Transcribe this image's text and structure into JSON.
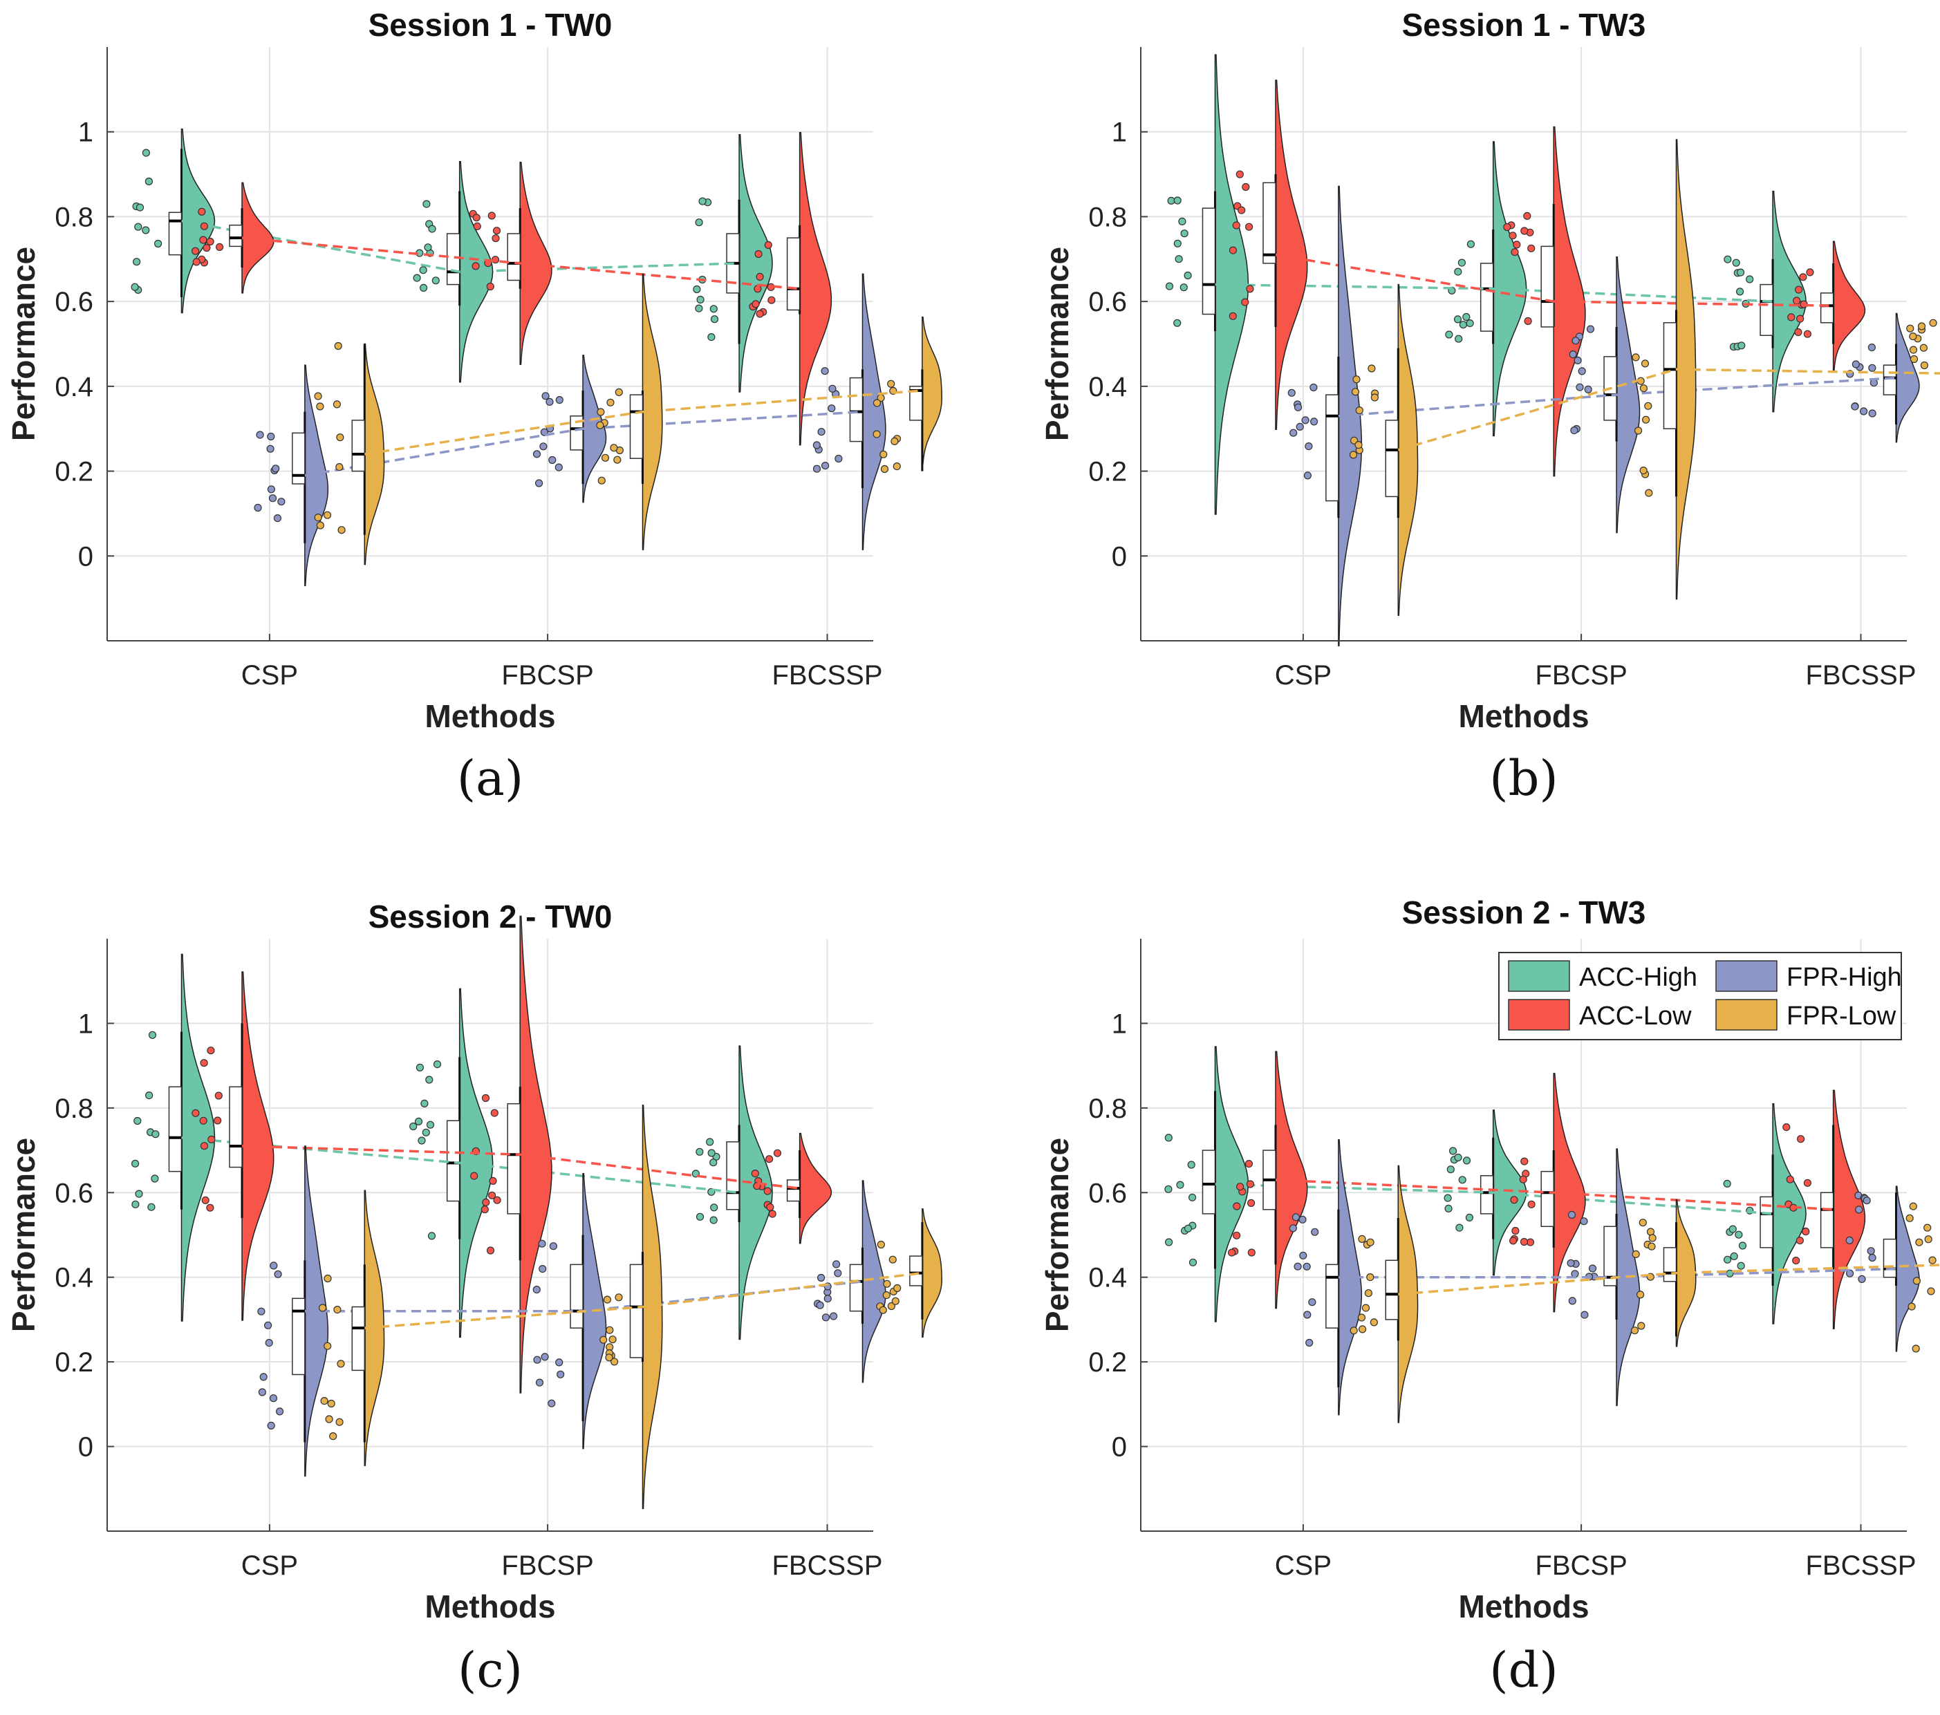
{
  "figure": {
    "panel_labels": [
      "(a)",
      "(b)",
      "(c)",
      "(d)"
    ]
  },
  "colors": {
    "ACC-High": "#6cc5a8",
    "ACC-Low": "#f7554a",
    "FPR-High": "#8c97c8",
    "FPR-Low": "#e6b04a"
  },
  "chart_data": [
    {
      "type": "violin",
      "title": "Session 1 - TW0",
      "xlabel": "Methods",
      "ylabel": "Performance",
      "ylim": [
        -0.2,
        1.2
      ],
      "yticks": [
        0,
        0.2,
        0.4,
        0.6,
        0.8,
        1
      ],
      "ytick_labels": [
        "0",
        "0.2",
        "0.4",
        "0.6",
        "0.8",
        "1"
      ],
      "grid": true,
      "categories": [
        "CSP",
        "FBCSP",
        "FBCSSP"
      ],
      "series": [
        {
          "name": "ACC-High",
          "medians": [
            0.79,
            0.67,
            0.69
          ],
          "q1": [
            0.71,
            0.64,
            0.62
          ],
          "q3": [
            0.81,
            0.76,
            0.76
          ],
          "min": [
            0.61,
            0.59,
            0.5
          ],
          "max": [
            0.96,
            0.86,
            0.84
          ]
        },
        {
          "name": "ACC-Low",
          "medians": [
            0.75,
            0.69,
            0.63
          ],
          "q1": [
            0.73,
            0.65,
            0.58
          ],
          "q3": [
            0.78,
            0.76,
            0.75
          ],
          "min": [
            0.68,
            0.63,
            0.57
          ],
          "max": [
            0.82,
            0.82,
            0.78
          ]
        },
        {
          "name": "FPR-High",
          "medians": [
            0.19,
            0.3,
            0.34
          ],
          "q1": [
            0.17,
            0.25,
            0.27
          ],
          "q3": [
            0.29,
            0.33,
            0.42
          ],
          "min": [
            0.03,
            0.17,
            0.16
          ],
          "max": [
            0.34,
            0.39,
            0.44
          ]
        },
        {
          "name": "FPR-Low",
          "medians": [
            0.24,
            0.34,
            0.39
          ],
          "q1": [
            0.2,
            0.23,
            0.32
          ],
          "q3": [
            0.32,
            0.38,
            0.4
          ],
          "min": [
            0.05,
            0.17,
            0.2
          ],
          "max": [
            0.5,
            0.39,
            0.44
          ]
        }
      ]
    },
    {
      "type": "violin",
      "title": "Session 1 - TW3",
      "xlabel": "Methods",
      "ylabel": "Performance",
      "ylim": [
        -0.2,
        1.2
      ],
      "yticks": [
        0,
        0.2,
        0.4,
        0.6,
        0.8,
        1
      ],
      "ytick_labels": [
        "0",
        "0.2",
        "0.4",
        "0.6",
        "0.8",
        "1"
      ],
      "grid": true,
      "categories": [
        "CSP",
        "FBCSP",
        "FBCSSP"
      ],
      "series": [
        {
          "name": "ACC-High",
          "medians": [
            0.64,
            0.63,
            0.6
          ],
          "q1": [
            0.57,
            0.53,
            0.52
          ],
          "q3": [
            0.82,
            0.69,
            0.64
          ],
          "min": [
            0.53,
            0.5,
            0.49
          ],
          "max": [
            0.86,
            0.77,
            0.7
          ]
        },
        {
          "name": "ACC-Low",
          "medians": [
            0.71,
            0.6,
            0.59
          ],
          "q1": [
            0.69,
            0.54,
            0.55
          ],
          "q3": [
            0.88,
            0.73,
            0.62
          ],
          "min": [
            0.54,
            0.54,
            0.5
          ],
          "max": [
            0.9,
            0.83,
            0.69
          ]
        },
        {
          "name": "FPR-High",
          "medians": [
            0.33,
            0.38,
            0.42
          ],
          "q1": [
            0.13,
            0.32,
            0.38
          ],
          "q3": [
            0.38,
            0.47,
            0.45
          ],
          "min": [
            0.09,
            0.27,
            0.31
          ],
          "max": [
            0.47,
            0.54,
            0.5
          ]
        },
        {
          "name": "FPR-Low",
          "medians": [
            0.25,
            0.44,
            0.43
          ],
          "q1": [
            0.14,
            0.3,
            0.4
          ],
          "q3": [
            0.32,
            0.55,
            0.46
          ],
          "min": [
            0.09,
            0.14,
            0.4
          ],
          "max": [
            0.49,
            0.58,
            0.55
          ]
        }
      ]
    },
    {
      "type": "violin",
      "title": "Session 2 - TW0",
      "xlabel": "Methods",
      "ylabel": "Performance",
      "ylim": [
        -0.2,
        1.2
      ],
      "yticks": [
        0,
        0.2,
        0.4,
        0.6,
        0.8,
        1
      ],
      "ytick_labels": [
        "0",
        "0.2",
        "0.4",
        "0.6",
        "0.8",
        "1"
      ],
      "grid": true,
      "categories": [
        "CSP",
        "FBCSP",
        "FBCSSP"
      ],
      "series": [
        {
          "name": "ACC-High",
          "medians": [
            0.73,
            0.67,
            0.6
          ],
          "q1": [
            0.65,
            0.58,
            0.56
          ],
          "q3": [
            0.85,
            0.77,
            0.72
          ],
          "min": [
            0.56,
            0.49,
            0.53
          ],
          "max": [
            0.98,
            0.92,
            0.76
          ]
        },
        {
          "name": "ACC-Low",
          "medians": [
            0.71,
            0.69,
            0.61
          ],
          "q1": [
            0.66,
            0.55,
            0.58
          ],
          "q3": [
            0.85,
            0.81,
            0.63
          ],
          "min": [
            0.54,
            0.44,
            0.54
          ],
          "max": [
            1.0,
            0.85,
            0.7
          ]
        },
        {
          "name": "FPR-High",
          "medians": [
            0.32,
            0.32,
            0.39
          ],
          "q1": [
            0.17,
            0.28,
            0.32
          ],
          "q3": [
            0.35,
            0.43,
            0.43
          ],
          "min": [
            0.01,
            0.06,
            0.29
          ],
          "max": [
            0.44,
            0.5,
            0.47
          ]
        },
        {
          "name": "FPR-Low",
          "medians": [
            0.28,
            0.33,
            0.41
          ],
          "q1": [
            0.18,
            0.21,
            0.38
          ],
          "q3": [
            0.33,
            0.43,
            0.45
          ],
          "min": [
            0.01,
            0.2,
            0.3
          ],
          "max": [
            0.43,
            0.46,
            0.53
          ]
        }
      ]
    },
    {
      "type": "violin",
      "title": "Session 2 - TW3",
      "xlabel": "Methods",
      "ylabel": "Performance",
      "ylim": [
        -0.2,
        1.2
      ],
      "yticks": [
        0,
        0.2,
        0.4,
        0.6,
        0.8,
        1
      ],
      "ytick_labels": [
        "0",
        "0.2",
        "0.4",
        "0.6",
        "0.8",
        "1"
      ],
      "grid": true,
      "legend_position": "top-right",
      "categories": [
        "CSP",
        "FBCSP",
        "FBCSSP"
      ],
      "series": [
        {
          "name": "ACC-High",
          "medians": [
            0.62,
            0.6,
            0.55
          ],
          "q1": [
            0.55,
            0.55,
            0.47
          ],
          "q3": [
            0.7,
            0.64,
            0.59
          ],
          "min": [
            0.42,
            0.49,
            0.38
          ],
          "max": [
            0.84,
            0.73,
            0.69
          ]
        },
        {
          "name": "ACC-Low",
          "medians": [
            0.63,
            0.6,
            0.56
          ],
          "q1": [
            0.56,
            0.52,
            0.47
          ],
          "q3": [
            0.7,
            0.65,
            0.6
          ],
          "min": [
            0.43,
            0.47,
            0.42
          ],
          "max": [
            0.76,
            0.7,
            0.76
          ]
        },
        {
          "name": "FPR-High",
          "medians": [
            0.4,
            0.4,
            0.42
          ],
          "q1": [
            0.28,
            0.38,
            0.4
          ],
          "q3": [
            0.43,
            0.52,
            0.49
          ],
          "min": [
            0.14,
            0.3,
            0.38
          ],
          "max": [
            0.56,
            0.55,
            0.6
          ]
        },
        {
          "name": "FPR-Low",
          "medians": [
            0.36,
            0.41,
            0.43
          ],
          "q1": [
            0.3,
            0.39,
            0.38
          ],
          "q3": [
            0.44,
            0.47,
            0.52
          ],
          "min": [
            0.25,
            0.26,
            0.23
          ],
          "max": [
            0.54,
            0.53,
            0.63
          ]
        }
      ]
    }
  ]
}
